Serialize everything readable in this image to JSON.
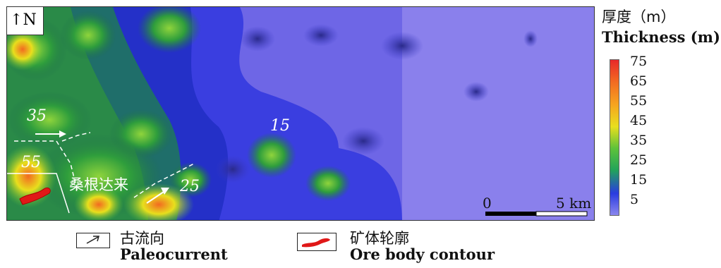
{
  "map": {
    "north_label": "N",
    "place_name": "桑根达来",
    "contour_labels": [
      "35",
      "55",
      "15",
      "25"
    ],
    "scale": {
      "start": "0",
      "end": "5 km"
    }
  },
  "legend": {
    "title_zh": "厚度（m）",
    "title_en": "Thickness (m)",
    "ticks": [
      "75",
      "65",
      "55",
      "45",
      "35",
      "25",
      "15",
      "5"
    ],
    "colors": [
      "#e8292a",
      "#f26a21",
      "#f6a51f",
      "#e8df1d",
      "#5ec23a",
      "#22a35a",
      "#2a3ce0",
      "#8a86ee"
    ]
  },
  "key": {
    "paleocurrent_zh": "古流向",
    "paleocurrent_en": "Paleocurrent",
    "ore_zh": "矿体轮廓",
    "ore_en": "Ore body contour"
  }
}
